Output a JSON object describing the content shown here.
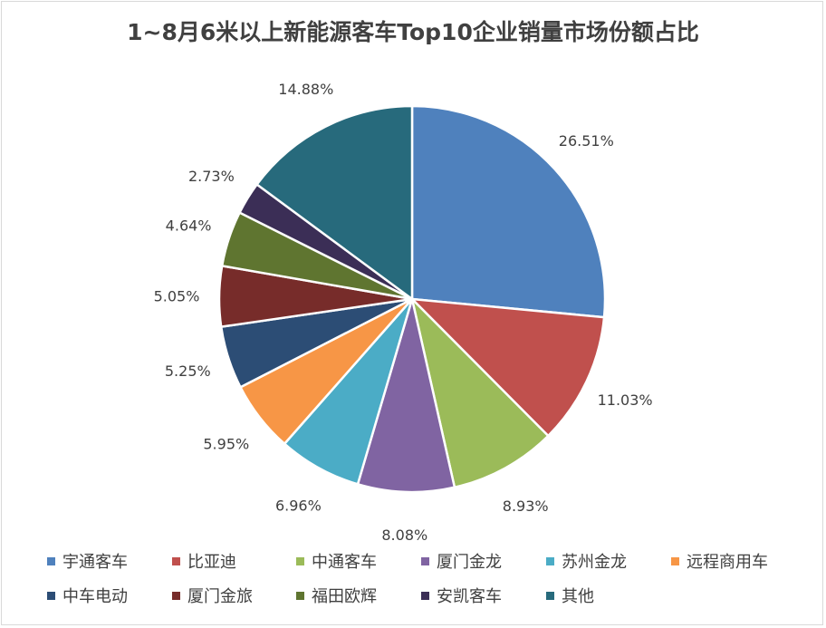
{
  "chart_data": {
    "type": "pie",
    "title": "1~8月6米以上新能源客车Top10企业销量市场份额占比",
    "categories": [
      "宇通客车",
      "比亚迪",
      "中通客车",
      "厦门金龙",
      "苏州金龙",
      "远程商用车",
      "中车电动",
      "厦门金旅",
      "福田欧辉",
      "安凯客车",
      "其他"
    ],
    "values": [
      26.51,
      11.03,
      8.93,
      8.08,
      6.96,
      5.95,
      5.25,
      5.05,
      4.64,
      2.73,
      14.88
    ],
    "labels": [
      "26.51%",
      "11.03%",
      "8.93%",
      "8.08%",
      "6.96%",
      "5.95%",
      "5.25%",
      "5.05%",
      "4.64%",
      "2.73%",
      "14.88%"
    ],
    "colors": [
      "#4f81bd",
      "#c0504d",
      "#9bbb59",
      "#8064a2",
      "#4bacc6",
      "#f79646",
      "#2c4d75",
      "#772c2a",
      "#5f7530",
      "#3b2e56",
      "#276a7c"
    ],
    "legend_position": "bottom"
  }
}
